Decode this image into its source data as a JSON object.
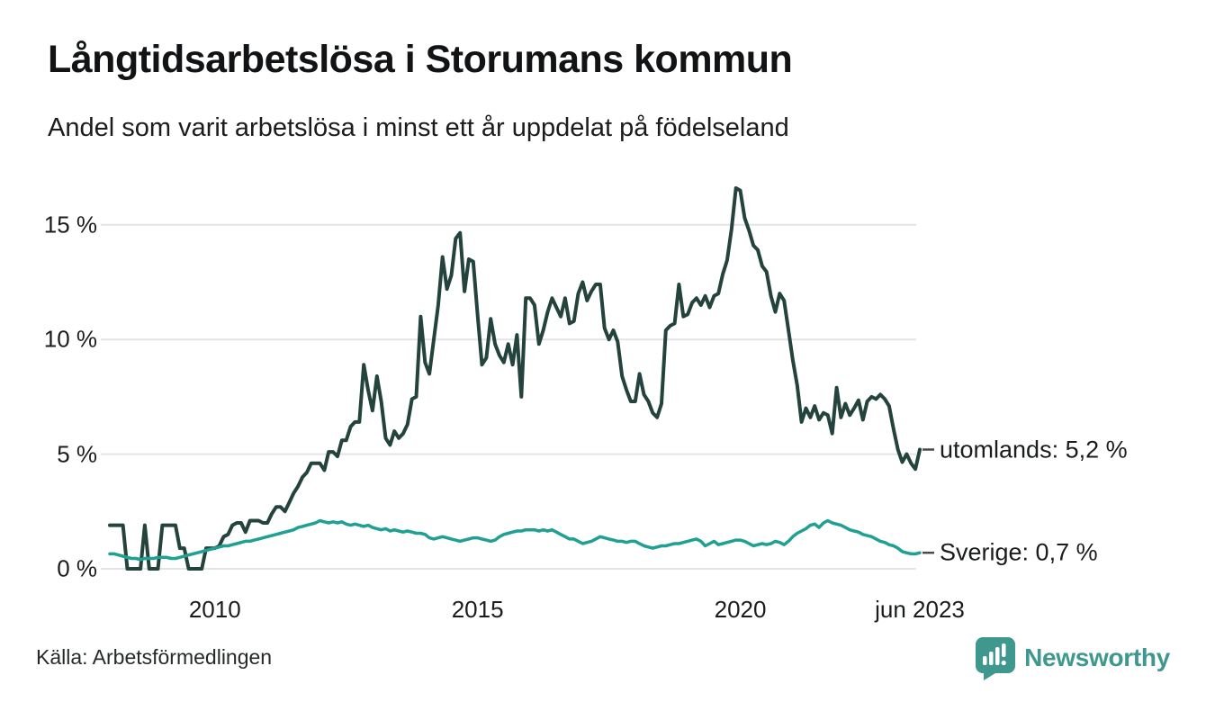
{
  "header": {
    "title": "Långtidsarbetslösa i Storumans kommun",
    "subtitle": "Andel som varit arbetslösa i minst ett år uppdelat på födelseland"
  },
  "footer": {
    "source": "Källa: Arbetsförmedlingen",
    "brand": "Newsworthy"
  },
  "colors": {
    "utomlands_line": "#24433c",
    "sverige_line": "#1fa093",
    "gridline": "#e4e4e8",
    "text": "#1a1c1d",
    "connector": "#4a4a4a",
    "brand_teal": "#3f988d",
    "background": "#ffffff"
  },
  "chart_data": {
    "type": "line",
    "title": "Långtidsarbetslösa i Storumans kommun",
    "subtitle": "Andel som varit arbetslösa i minst ett år uppdelat på födelseland",
    "unit": "%",
    "frequency": "monthly",
    "x_range": [
      "2008-01",
      "2023-06"
    ],
    "ylim": [
      0,
      17
    ],
    "grid": "horizontal",
    "legend_position": "right-end-labels",
    "y_ticks": [
      {
        "label": "0 %",
        "value": 0
      },
      {
        "label": "5 %",
        "value": 5
      },
      {
        "label": "10 %",
        "value": 10
      },
      {
        "label": "15 %",
        "value": 15
      }
    ],
    "x_ticks": [
      {
        "label": "2010",
        "index": 24
      },
      {
        "label": "2015",
        "index": 84
      },
      {
        "label": "2020",
        "index": 144
      },
      {
        "label": "jun 2023",
        "index": 185
      }
    ],
    "series": [
      {
        "name": "utomlands",
        "end_label": "utomlands: 5,2 %",
        "end_value_text": "5,2 %",
        "color": "#24433c",
        "values": [
          1.9,
          1.9,
          1.9,
          1.9,
          0,
          0,
          0,
          0,
          1.9,
          0,
          0,
          0,
          1.9,
          1.9,
          1.9,
          1.9,
          0.9,
          0.9,
          0,
          0,
          0,
          0,
          0.9,
          0.9,
          0.9,
          1.0,
          1.4,
          1.5,
          1.9,
          2.0,
          2.0,
          1.6,
          2.1,
          2.1,
          2.1,
          2.0,
          2.0,
          2.4,
          2.7,
          2.7,
          2.5,
          2.9,
          3.3,
          3.6,
          4.0,
          4.2,
          4.6,
          4.6,
          4.6,
          4.3,
          5.1,
          5.1,
          4.9,
          5.6,
          5.6,
          6.2,
          6.4,
          6.4,
          8.9,
          7.8,
          6.9,
          8.4,
          7.3,
          5.7,
          5.4,
          6.0,
          5.7,
          5.9,
          6.3,
          7.4,
          7.5,
          11.0,
          9.0,
          8.5,
          10.0,
          11.5,
          13.6,
          12.2,
          12.8,
          14.4,
          14.65,
          12.1,
          13.5,
          13.4,
          11.1,
          8.9,
          9.2,
          10.9,
          9.8,
          9.3,
          9.0,
          9.8,
          8.9,
          10.2,
          7.5,
          11.8,
          11.8,
          11.5,
          9.8,
          10.4,
          11.2,
          11.8,
          11.4,
          11.0,
          11.8,
          10.7,
          10.8,
          12.0,
          12.5,
          11.7,
          12.1,
          12.4,
          12.4,
          10.5,
          10.0,
          10.4,
          9.9,
          8.4,
          7.8,
          7.3,
          7.3,
          8.5,
          7.6,
          7.3,
          6.8,
          6.6,
          7.2,
          10.4,
          10.6,
          10.7,
          12.4,
          11.0,
          11.1,
          11.6,
          11.8,
          11.5,
          11.9,
          11.4,
          11.9,
          12.0,
          12.85,
          13.45,
          14.8,
          16.6,
          16.5,
          15.3,
          14.75,
          14.1,
          13.9,
          13.2,
          12.95,
          11.9,
          11.2,
          12.0,
          11.7,
          10.4,
          9.1,
          8.0,
          6.4,
          7.0,
          6.6,
          7.1,
          6.5,
          6.8,
          6.7,
          5.9,
          7.9,
          6.6,
          7.2,
          6.7,
          7.0,
          7.35,
          6.5,
          7.3,
          7.5,
          7.4,
          7.6,
          7.4,
          7.1,
          6.1,
          5.2,
          4.65,
          5.0,
          4.6,
          4.35,
          5.2
        ]
      },
      {
        "name": "Sverige",
        "end_label": "Sverige: 0,7 %",
        "end_value_text": "0,7 %",
        "color": "#1fa093",
        "values": [
          0.65,
          0.65,
          0.6,
          0.55,
          0.5,
          0.45,
          0.45,
          0.4,
          0.45,
          0.45,
          0.45,
          0.5,
          0.5,
          0.5,
          0.45,
          0.45,
          0.5,
          0.55,
          0.6,
          0.65,
          0.7,
          0.75,
          0.8,
          0.85,
          0.9,
          0.95,
          1.0,
          1.0,
          1.05,
          1.1,
          1.15,
          1.2,
          1.2,
          1.25,
          1.3,
          1.35,
          1.4,
          1.45,
          1.5,
          1.55,
          1.6,
          1.65,
          1.7,
          1.8,
          1.85,
          1.9,
          1.95,
          2.0,
          2.1,
          2.05,
          2.0,
          2.05,
          2.0,
          2.05,
          1.95,
          1.9,
          1.95,
          1.9,
          1.85,
          1.9,
          1.8,
          1.75,
          1.7,
          1.75,
          1.65,
          1.7,
          1.65,
          1.6,
          1.65,
          1.6,
          1.55,
          1.55,
          1.5,
          1.35,
          1.3,
          1.35,
          1.4,
          1.35,
          1.3,
          1.25,
          1.2,
          1.25,
          1.3,
          1.35,
          1.35,
          1.3,
          1.25,
          1.2,
          1.25,
          1.4,
          1.5,
          1.55,
          1.6,
          1.65,
          1.65,
          1.7,
          1.7,
          1.7,
          1.65,
          1.7,
          1.65,
          1.7,
          1.6,
          1.5,
          1.4,
          1.3,
          1.3,
          1.2,
          1.1,
          1.15,
          1.2,
          1.3,
          1.4,
          1.35,
          1.3,
          1.25,
          1.2,
          1.2,
          1.15,
          1.2,
          1.2,
          1.1,
          1.0,
          0.95,
          0.9,
          0.95,
          1.0,
          1.0,
          1.05,
          1.1,
          1.1,
          1.15,
          1.2,
          1.25,
          1.3,
          1.2,
          1.0,
          1.1,
          1.2,
          1.05,
          1.1,
          1.15,
          1.2,
          1.25,
          1.25,
          1.2,
          1.1,
          1.0,
          1.05,
          1.1,
          1.05,
          1.1,
          1.2,
          1.15,
          1.05,
          1.2,
          1.4,
          1.55,
          1.65,
          1.75,
          1.9,
          1.95,
          1.8,
          2.0,
          2.1,
          2.0,
          1.95,
          1.9,
          1.8,
          1.7,
          1.65,
          1.6,
          1.5,
          1.45,
          1.4,
          1.3,
          1.2,
          1.15,
          1.05,
          1.0,
          0.9,
          0.75,
          0.7,
          0.65,
          0.65,
          0.7
        ]
      }
    ]
  }
}
